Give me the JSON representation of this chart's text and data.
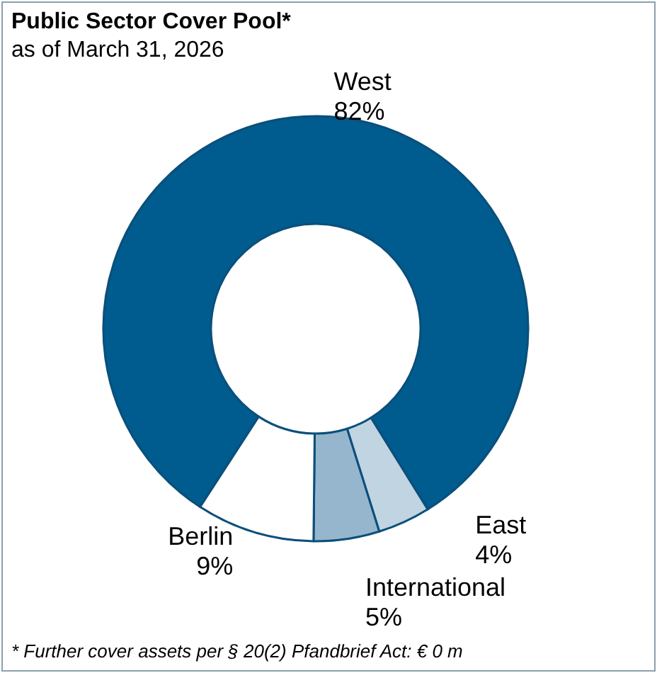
{
  "chart_data": {
    "type": "donut",
    "title": "Public Sector Cover Pool*",
    "subtitle": "as of March 31, 2026",
    "categories": [
      "West",
      "East",
      "International",
      "Berlin"
    ],
    "values": [
      82,
      4,
      5,
      9
    ],
    "value_labels": [
      "82%",
      "4%",
      "5%",
      "9%"
    ],
    "colors": [
      "#005b8e",
      "#c0d4e2",
      "#96b6cd",
      "#ffffff"
    ],
    "legend": false,
    "annotations": [
      "* Further cover assets per § 20(2) Pfandbrief Act:  € 0 m"
    ]
  }
}
